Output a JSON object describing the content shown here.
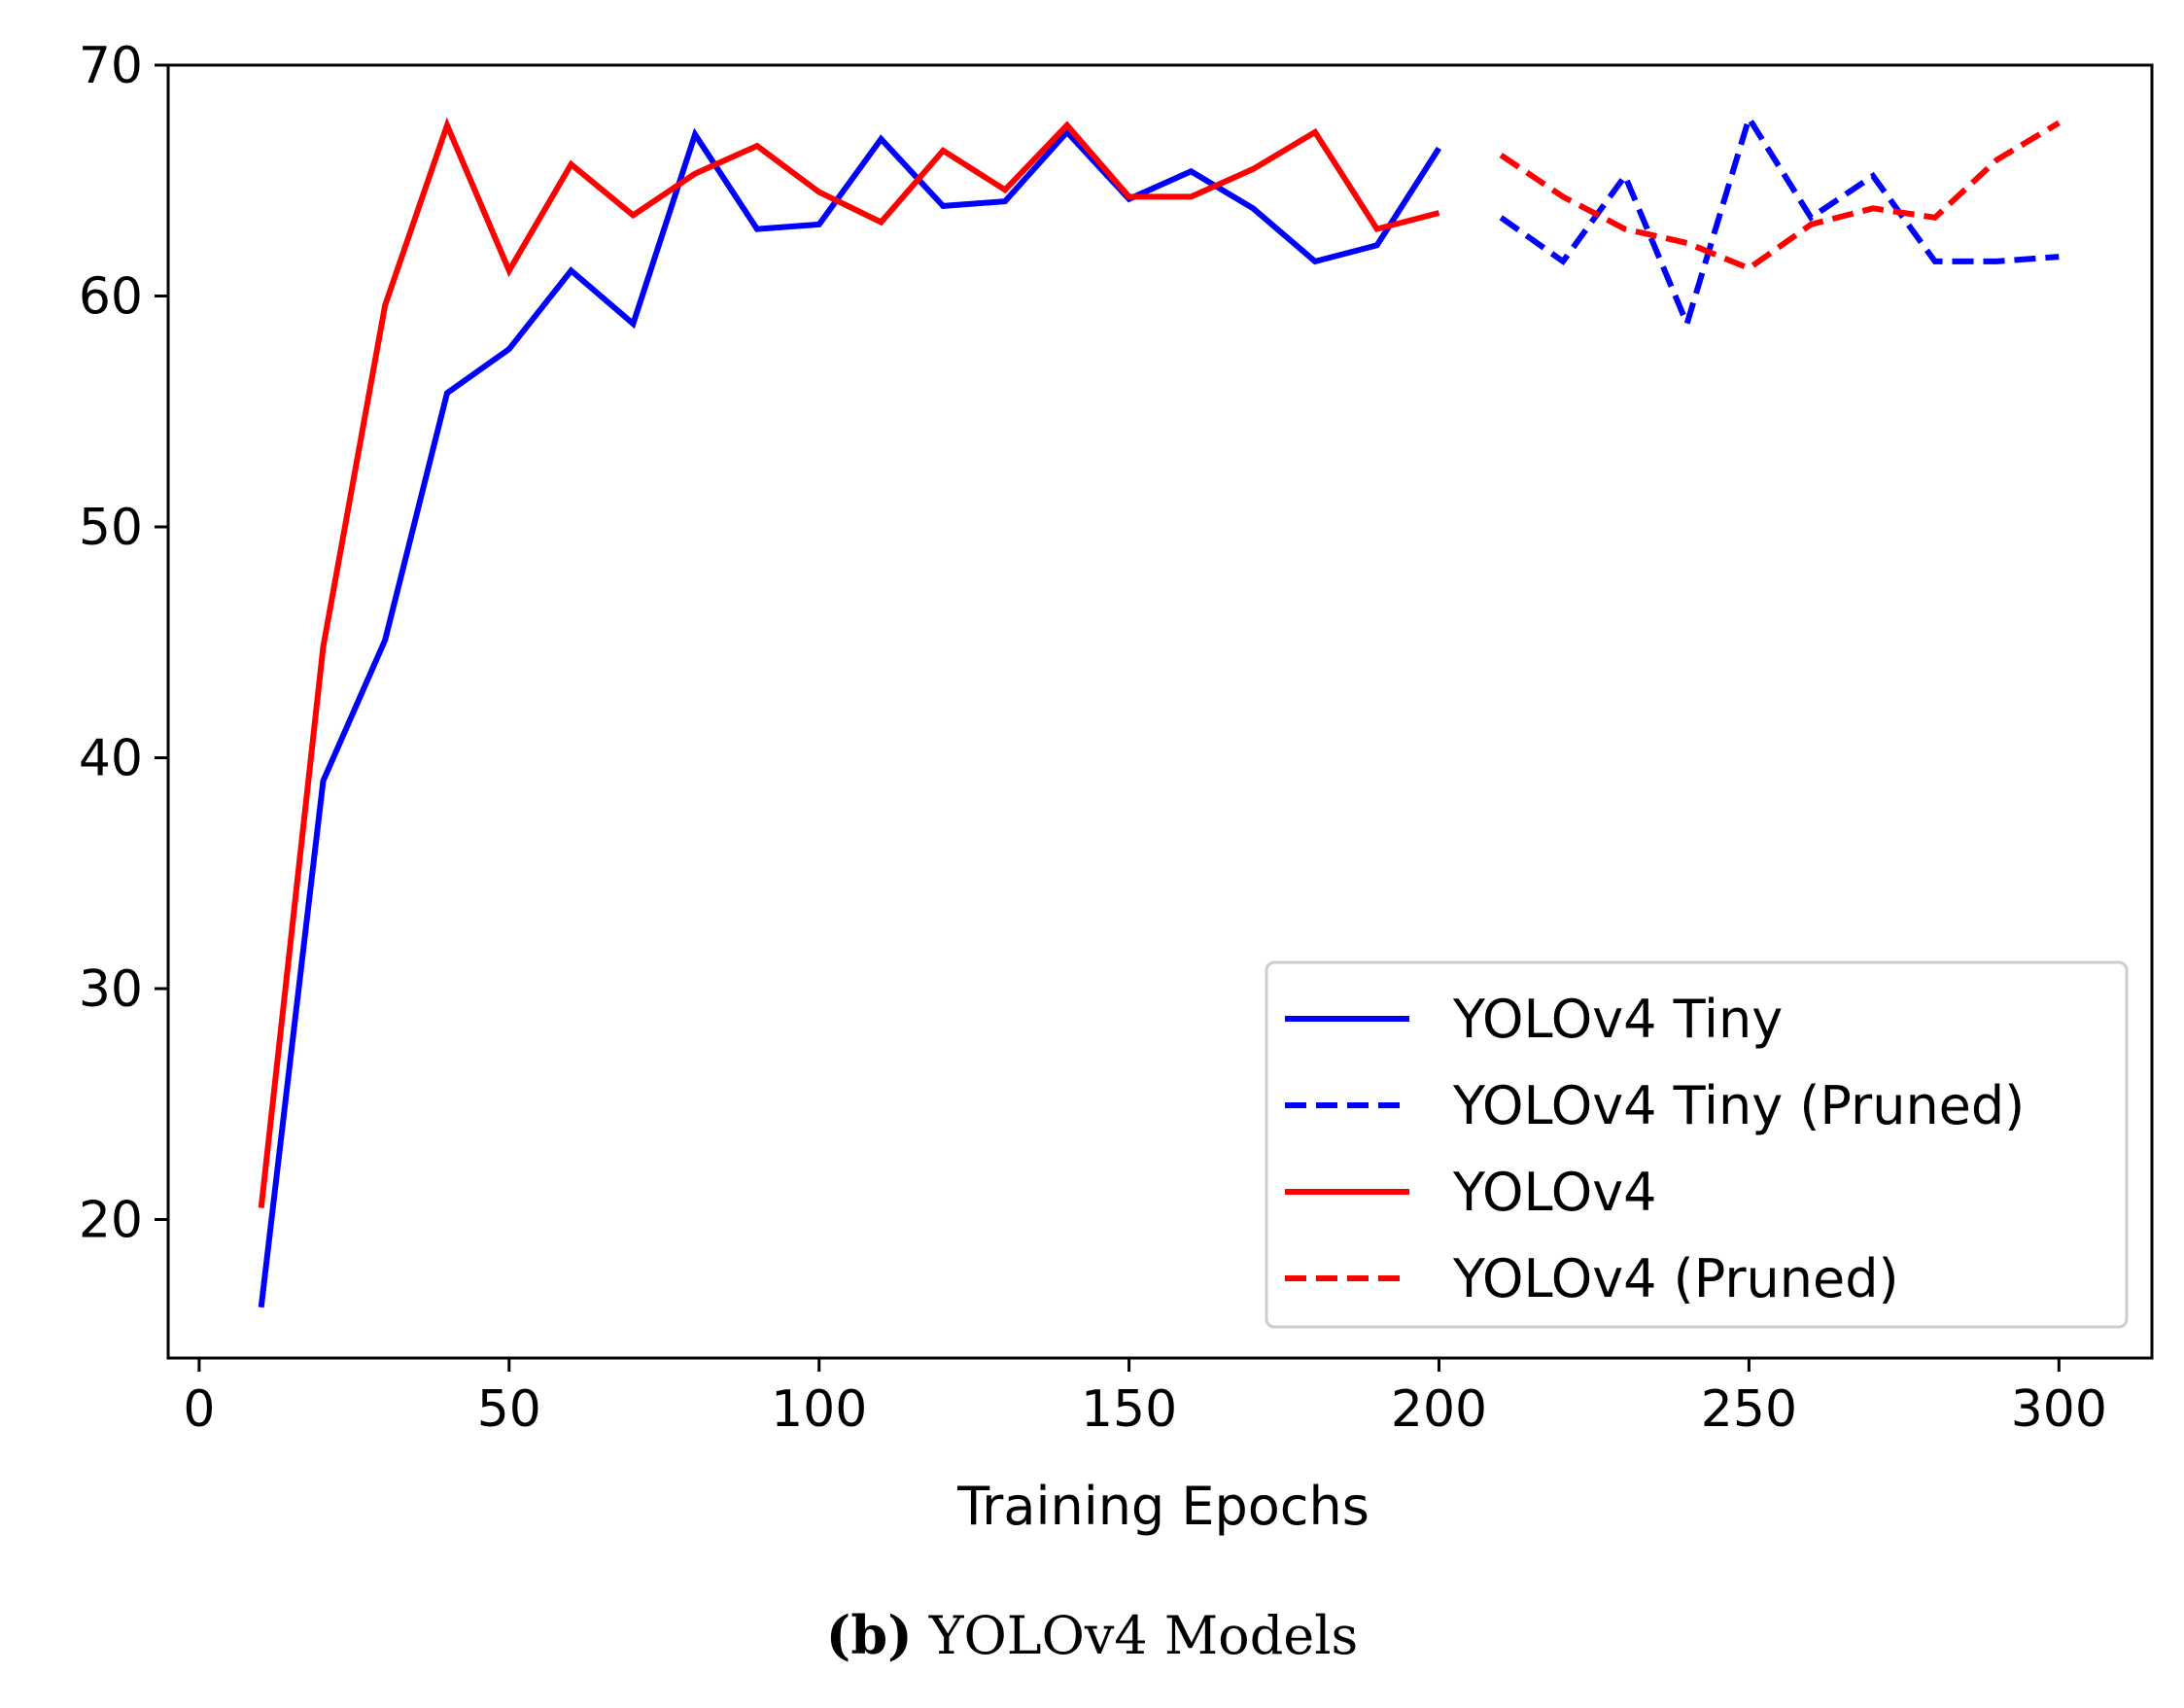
{
  "chart_data": {
    "type": "line",
    "title": "",
    "xlabel": "Training Epochs",
    "ylabel": "",
    "xlim": [
      -5,
      315
    ],
    "ylim": [
      14,
      70
    ],
    "xticks": [
      0,
      50,
      100,
      150,
      200,
      250,
      300
    ],
    "yticks": [
      20,
      30,
      40,
      50,
      60,
      70
    ],
    "legend_position": "lower-right",
    "series": [
      {
        "name": "YOLOv4 Tiny",
        "color": "#0000ff",
        "style": "solid",
        "x": [
          10,
          20,
          30,
          40,
          50,
          60,
          70,
          80,
          90,
          100,
          110,
          120,
          130,
          140,
          150,
          160,
          170,
          180,
          190,
          200
        ],
        "y": [
          16.2,
          39.0,
          45.1,
          55.8,
          57.7,
          61.1,
          58.8,
          67.0,
          62.9,
          63.1,
          66.8,
          63.9,
          64.1,
          67.1,
          64.2,
          65.4,
          63.8,
          61.5,
          62.2,
          66.4
        ]
      },
      {
        "name": "YOLOv4 Tiny (Pruned)",
        "color": "#0000ff",
        "style": "dashed",
        "x": [
          210,
          220,
          230,
          240,
          250,
          260,
          270,
          280,
          290,
          300
        ],
        "y": [
          63.4,
          61.5,
          65.2,
          58.8,
          67.7,
          63.4,
          65.2,
          61.5,
          61.5,
          61.7
        ]
      },
      {
        "name": "YOLOv4",
        "color": "#ff0000",
        "style": "solid",
        "x": [
          10,
          20,
          30,
          40,
          50,
          60,
          70,
          80,
          90,
          100,
          110,
          120,
          130,
          140,
          150,
          160,
          170,
          180,
          190,
          200
        ],
        "y": [
          20.5,
          44.8,
          59.6,
          67.4,
          61.1,
          65.7,
          63.5,
          65.3,
          66.5,
          64.5,
          63.2,
          66.3,
          64.6,
          67.4,
          64.3,
          64.3,
          65.5,
          67.1,
          62.9,
          63.6
        ]
      },
      {
        "name": "YOLOv4 (Pruned)",
        "color": "#ff0000",
        "style": "dashed",
        "x": [
          210,
          220,
          230,
          240,
          250,
          260,
          270,
          280,
          290,
          300
        ],
        "y": [
          66.1,
          64.3,
          62.9,
          62.3,
          61.2,
          63.1,
          63.8,
          63.4,
          65.9,
          67.5
        ]
      }
    ]
  },
  "caption": {
    "label": "(b)",
    "text": "YOLOv4 Models"
  }
}
